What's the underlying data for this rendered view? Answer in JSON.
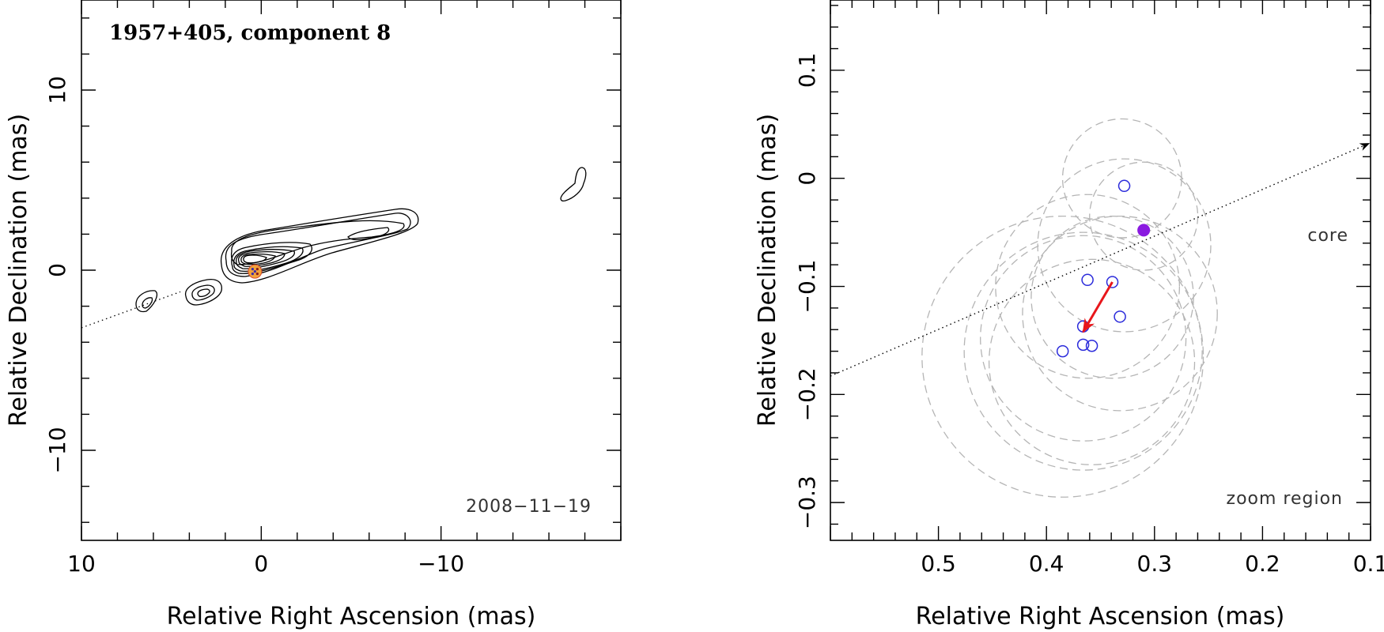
{
  "chart_data": [
    {
      "type": "contour",
      "title": "1957+405, component 8",
      "xlabel": "Relative Right Ascension (mas)",
      "ylabel": "Relative Declination (mas)",
      "xlim": [
        10,
        -20
      ],
      "ylim": [
        -15,
        15
      ],
      "x_ticks": [
        10,
        0,
        -10
      ],
      "x_tick_labels": [
        "10",
        "0",
        "−10"
      ],
      "y_ticks": [
        10,
        0,
        -10
      ],
      "y_tick_labels": [
        "10",
        "0",
        "−10"
      ],
      "date_label": "2008−11−19",
      "jet_axis": {
        "from": [
          10,
          -3.2
        ],
        "to": [
          4.5,
          -1.2
        ]
      },
      "component_position": {
        "x": 0.35,
        "y": -0.07
      },
      "features": [
        {
          "name": "core-jet",
          "x_range": [
            1.8,
            -8.5
          ]
        },
        {
          "name": "counter-blob-1",
          "x": 3.6,
          "y": -1.2
        },
        {
          "name": "counter-blob-2",
          "x": 6.5,
          "y": -1.9
        },
        {
          "name": "far-jet-blob",
          "x": -17.0,
          "y": 4.8
        }
      ]
    },
    {
      "type": "scatter",
      "xlabel": "Relative Right Ascension (mas)",
      "ylabel": "Relative Declination (mas)",
      "xlim": [
        0.6,
        0.1
      ],
      "ylim": [
        -0.335,
        0.165
      ],
      "x_ticks": [
        0.5,
        0.4,
        0.3,
        0.2,
        0.1
      ],
      "x_tick_labels": [
        "0.5",
        "0.4",
        "0.3",
        "0.2",
        "0.1"
      ],
      "y_ticks": [
        0.1,
        0,
        -0.1,
        -0.2,
        -0.3
      ],
      "y_tick_labels": [
        "0.1",
        "0",
        "−0.1",
        "−0.2",
        "−0.3"
      ],
      "zoom_label": "zoom region",
      "core_label": "core",
      "core_direction": {
        "from": [
          0.6,
          -0.183
        ],
        "to": [
          0.1,
          0.033
        ]
      },
      "filled_point": {
        "x": 0.31,
        "y": -0.048
      },
      "points": [
        {
          "x": 0.328,
          "y": -0.007
        },
        {
          "x": 0.362,
          "y": -0.094
        },
        {
          "x": 0.339,
          "y": -0.096
        },
        {
          "x": 0.332,
          "y": -0.128
        },
        {
          "x": 0.366,
          "y": -0.137
        },
        {
          "x": 0.366,
          "y": -0.154
        },
        {
          "x": 0.358,
          "y": -0.155
        },
        {
          "x": 0.385,
          "y": -0.16
        }
      ],
      "motion_vector": {
        "from": [
          0.339,
          -0.096
        ],
        "to": [
          0.366,
          -0.142
        ]
      },
      "error_circles": [
        {
          "x": 0.33,
          "y": 0.0,
          "r": 0.055
        },
        {
          "x": 0.31,
          "y": -0.035,
          "r": 0.05
        },
        {
          "x": 0.328,
          "y": -0.062,
          "r": 0.08
        },
        {
          "x": 0.362,
          "y": -0.1,
          "r": 0.085
        },
        {
          "x": 0.339,
          "y": -0.11,
          "r": 0.075
        },
        {
          "x": 0.332,
          "y": -0.125,
          "r": 0.09
        },
        {
          "x": 0.366,
          "y": -0.148,
          "r": 0.095
        },
        {
          "x": 0.366,
          "y": -0.16,
          "r": 0.11
        },
        {
          "x": 0.358,
          "y": -0.17,
          "r": 0.095
        },
        {
          "x": 0.385,
          "y": -0.165,
          "r": 0.13
        }
      ]
    }
  ]
}
